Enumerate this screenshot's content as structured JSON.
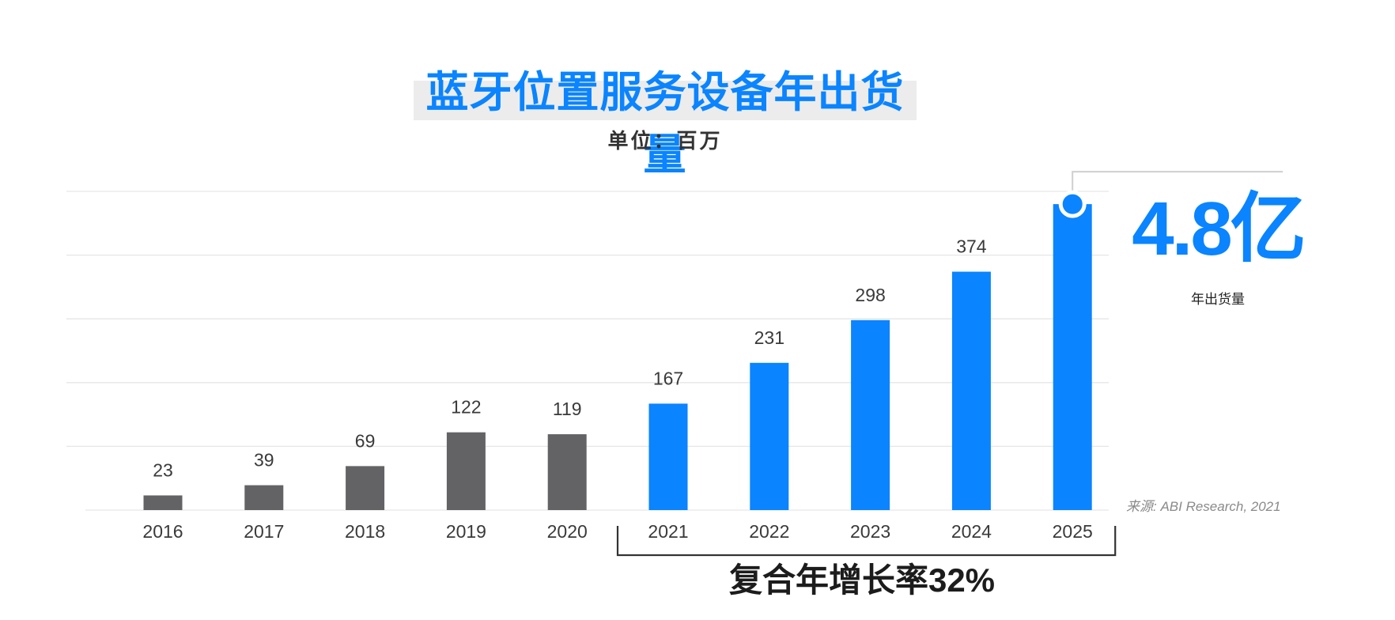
{
  "chart_data": {
    "type": "bar",
    "title": "蓝牙位置服务设备年出货量",
    "subtitle": "单位：百万",
    "categories": [
      "2016",
      "2017",
      "2018",
      "2019",
      "2020",
      "2021",
      "2022",
      "2023",
      "2024",
      "2025"
    ],
    "values": [
      23,
      39,
      69,
      122,
      119,
      167,
      231,
      298,
      374,
      480
    ],
    "data_labels": [
      "23",
      "39",
      "69",
      "122",
      "119",
      "167",
      "231",
      "298",
      "374",
      ""
    ],
    "ylim": [
      0,
      500
    ],
    "gridlines": true,
    "highlight_from": "2021",
    "colors": {
      "historical": "#636366",
      "forecast": "#0a84ff",
      "grid": "#e6e6e6",
      "bracket": "#333333"
    },
    "callout": {
      "value": "4.8亿",
      "caption": "年出货量"
    },
    "cagr_label": "复合年增长率32%",
    "source": "来源: ABI Research, 2021"
  }
}
